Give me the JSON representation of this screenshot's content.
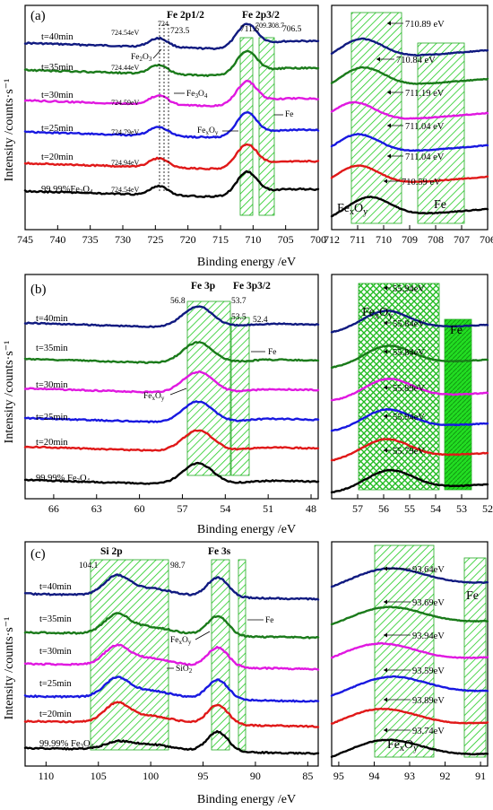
{
  "x_axis_label": "Binding energy /eV",
  "y_axis_label": "Intensity /counts·s⁻¹",
  "series_colors": {
    "t=40min": "#101a80",
    "t=35min": "#1a7a1a",
    "t=30min": "#e018e0",
    "t=25min": "#1818e0",
    "t=20min": "#e01818",
    "99.99% Fe3O4": "#000000"
  },
  "chart_data": [
    {
      "type": "line",
      "panel": "(a)",
      "peak_titles": [
        "Fe 2p1/2",
        "Fe 2p3/2"
      ],
      "xlim": [
        745,
        700
      ],
      "xticks": [
        745,
        740,
        735,
        730,
        725,
        720,
        715,
        710,
        705,
        700
      ],
      "series": [
        {
          "name": "t=40min",
          "peak_eV": 711.0
        },
        {
          "name": "t=35min",
          "peak_eV": 711.0
        },
        {
          "name": "t=30min",
          "peak_eV": 711.0
        },
        {
          "name": "t=25min",
          "peak_eV": 711.0
        },
        {
          "name": "t=20min",
          "peak_eV": 711.0
        },
        {
          "name": "99.99%Fe3O4",
          "peak_eV": 711.0
        }
      ],
      "curve_labels": [
        "t=40min",
        "t=35min",
        "t=30min",
        "t=25min",
        "t=20min",
        "99.99%Fe3O4"
      ],
      "peak_annotations": [
        "724.54eV",
        "724.44eV",
        "724.59eV",
        "724.79eV",
        "724.94eV",
        "724.54eV"
      ],
      "reference_lines": [
        "724",
        "723.5",
        "711.6",
        "709.3",
        "708.7",
        "706.5"
      ],
      "phase_labels": [
        "Fe2O3",
        "Fe3O4",
        "FexOy",
        "Fe"
      ]
    },
    {
      "type": "line",
      "panel": "(a) detail",
      "xlim": [
        712,
        706
      ],
      "xticks": [
        712,
        711,
        710,
        709,
        708,
        707,
        706
      ],
      "peak_values_eV": [
        710.89,
        710.84,
        711.19,
        711.04,
        711.04,
        710.59
      ],
      "peak_labels": [
        "710.89 eV",
        "710.84 eV",
        "711.19 eV",
        "711.04 eV",
        "711.04 eV",
        "710.59 eV"
      ],
      "region_labels": [
        "FexOy",
        "Fe"
      ]
    },
    {
      "type": "line",
      "panel": "(b)",
      "peak_titles": [
        "Fe 3p",
        "Fe 3p3/2"
      ],
      "xlim": [
        68,
        47.5
      ],
      "xticks": [
        66,
        63,
        60,
        57,
        54,
        51,
        48
      ],
      "curve_labels": [
        "t=40min",
        "t=35min",
        "t=30min",
        "t=25min",
        "t=20min",
        "99.99% Fe3O4"
      ],
      "reference_lines": [
        "56.8",
        "53.7",
        "53.5",
        "52.4"
      ],
      "phase_labels": [
        "FexOy",
        "Fe"
      ]
    },
    {
      "type": "line",
      "panel": "(b) detail",
      "xlim": [
        58,
        52
      ],
      "xticks": [
        57,
        56,
        55,
        54,
        53,
        52
      ],
      "peak_values_eV": [
        55.94,
        55.84,
        55.84,
        55.89,
        55.94,
        55.79
      ],
      "peak_labels": [
        "55.94eV",
        "55.84eV",
        "55.84eV",
        "55.89eV",
        "55.94eV",
        "55.79eV"
      ],
      "region_labels": [
        "FexOy",
        "Fe"
      ]
    },
    {
      "type": "line",
      "panel": "(c)",
      "peak_titles": [
        "Si 2p",
        "Fe 3s"
      ],
      "xlim": [
        112,
        84
      ],
      "xticks": [
        110,
        105,
        100,
        95,
        90,
        85
      ],
      "curve_labels": [
        "t=40min",
        "t=35min",
        "t=30min",
        "t=25min",
        "t=20min",
        "99.99% Fe3O4"
      ],
      "reference_lines": [
        "104.1",
        "98.7"
      ],
      "phase_labels": [
        "FexOy",
        "SiO2",
        "Fe"
      ]
    },
    {
      "type": "line",
      "panel": "(c) detail",
      "xlim": [
        95.2,
        90.8
      ],
      "xticks": [
        95,
        94,
        93,
        92,
        91
      ],
      "peak_values_eV": [
        93.64,
        93.69,
        93.94,
        93.59,
        93.89,
        93.74
      ],
      "peak_labels": [
        "93.64eV",
        "93.69eV",
        "93.94eV",
        "93.59eV",
        "93.89eV",
        "93.74eV"
      ],
      "region_labels": [
        "Fe",
        "FexOy"
      ]
    }
  ]
}
